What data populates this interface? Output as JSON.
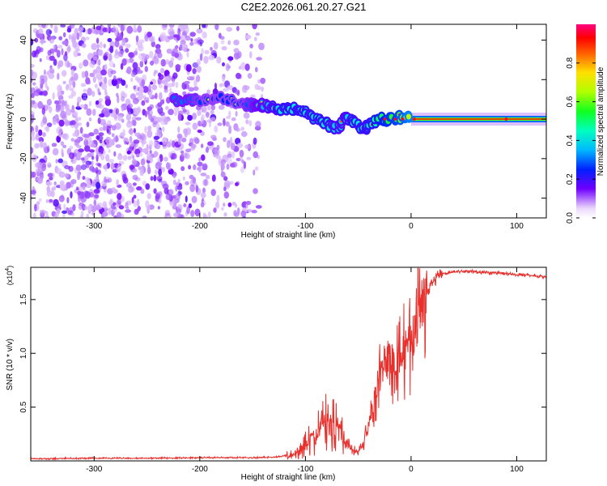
{
  "title": "C2E2.2026.061.20.27.G21",
  "chart_data": [
    {
      "type": "heatmap",
      "name": "spectrogram",
      "xlabel": "Height of straight line (km)",
      "ylabel": "Frequency (Hz)",
      "xlim": [
        -360,
        128
      ],
      "ylim": [
        -50,
        48
      ],
      "xticks": [
        -300,
        -200,
        -100,
        0,
        100
      ],
      "yticks": [
        -40,
        -20,
        0,
        20,
        40
      ],
      "xtick_labels": [
        "-300",
        "-200",
        "-100",
        "0",
        "100"
      ],
      "ytick_labels": [
        "-40",
        "-20",
        "0",
        "20",
        "40"
      ],
      "colorbar": {
        "label": "Normalized spectral amplitude",
        "range": [
          0,
          1
        ],
        "ticks": [
          0.0,
          0.2,
          0.4,
          0.6,
          0.8
        ],
        "tick_labels": [
          "0.0",
          "0.2",
          "0.4",
          "0.6",
          "0.8"
        ]
      },
      "noise_region_km": [
        -360,
        -140
      ],
      "signal_trace": [
        {
          "x": -225,
          "y": 10,
          "a": 0.35
        },
        {
          "x": -210,
          "y": 9,
          "a": 0.35
        },
        {
          "x": -195,
          "y": 10,
          "a": 0.3
        },
        {
          "x": -180,
          "y": 11,
          "a": 0.3
        },
        {
          "x": -160,
          "y": 8,
          "a": 0.3
        },
        {
          "x": -150,
          "y": 7,
          "a": 0.35
        },
        {
          "x": -140,
          "y": 7,
          "a": 0.4
        },
        {
          "x": -130,
          "y": 6,
          "a": 0.45
        },
        {
          "x": -120,
          "y": 5,
          "a": 0.5
        },
        {
          "x": -110,
          "y": 5,
          "a": 0.5
        },
        {
          "x": -100,
          "y": 4,
          "a": 0.5
        },
        {
          "x": -90,
          "y": 0,
          "a": 0.5
        },
        {
          "x": -80,
          "y": -2,
          "a": 0.5
        },
        {
          "x": -70,
          "y": -5,
          "a": 0.45
        },
        {
          "x": -62,
          "y": 1,
          "a": 0.45
        },
        {
          "x": -55,
          "y": -1,
          "a": 0.5
        },
        {
          "x": -45,
          "y": -6,
          "a": 0.5
        },
        {
          "x": -40,
          "y": -2,
          "a": 0.5
        },
        {
          "x": -30,
          "y": 0,
          "a": 0.6
        },
        {
          "x": -20,
          "y": 0,
          "a": 0.65
        },
        {
          "x": -10,
          "y": 1,
          "a": 0.7
        },
        {
          "x": 0,
          "y": 0,
          "a": 0.8
        },
        {
          "x": 20,
          "y": 0,
          "a": 0.9
        },
        {
          "x": 40,
          "y": 0,
          "a": 1.0
        },
        {
          "x": 60,
          "y": 0,
          "a": 1.0
        },
        {
          "x": 80,
          "y": 0,
          "a": 1.0
        },
        {
          "x": 100,
          "y": 0,
          "a": 0.95
        },
        {
          "x": 128,
          "y": 0,
          "a": 0.9
        }
      ]
    },
    {
      "type": "line",
      "name": "snr",
      "xlabel": "Height of straight line (km)",
      "ylabel": "SNR (10 * v/v)",
      "scale_label": "(x10",
      "scale_exponent": "4",
      "scale_suffix": ")",
      "xlim": [
        -360,
        128
      ],
      "ylim": [
        0,
        18000
      ],
      "xticks": [
        -300,
        -200,
        -100,
        0,
        100
      ],
      "yticks": [
        5000,
        10000,
        15000
      ],
      "xtick_labels": [
        "-300",
        "-200",
        "-100",
        "0",
        "100"
      ],
      "ytick_labels": [
        "0.5",
        "1.0",
        "1.5"
      ],
      "color": "#e8302d",
      "series": [
        {
          "name": "SNR",
          "x": [
            -360,
            -300,
            -250,
            -200,
            -150,
            -130,
            -115,
            -105,
            -100,
            -95,
            -90,
            -85,
            -80,
            -75,
            -70,
            -65,
            -60,
            -55,
            -50,
            -45,
            -40,
            -35,
            -30,
            -25,
            -20,
            -15,
            -10,
            -5,
            0,
            5,
            10,
            15,
            20,
            25,
            30,
            35,
            40,
            50,
            60,
            70,
            80,
            90,
            100,
            110,
            120,
            128
          ],
          "y": [
            200,
            250,
            250,
            300,
            300,
            350,
            500,
            900,
            1500,
            1900,
            2300,
            3100,
            3400,
            3200,
            2800,
            2200,
            1500,
            1000,
            800,
            1600,
            3400,
            5600,
            7400,
            8900,
            9400,
            9600,
            9800,
            10300,
            11200,
            12500,
            14300,
            15800,
            16700,
            17200,
            17400,
            17500,
            17600,
            17600,
            17600,
            17500,
            17500,
            17400,
            17300,
            17300,
            17200,
            17100
          ]
        }
      ]
    }
  ]
}
